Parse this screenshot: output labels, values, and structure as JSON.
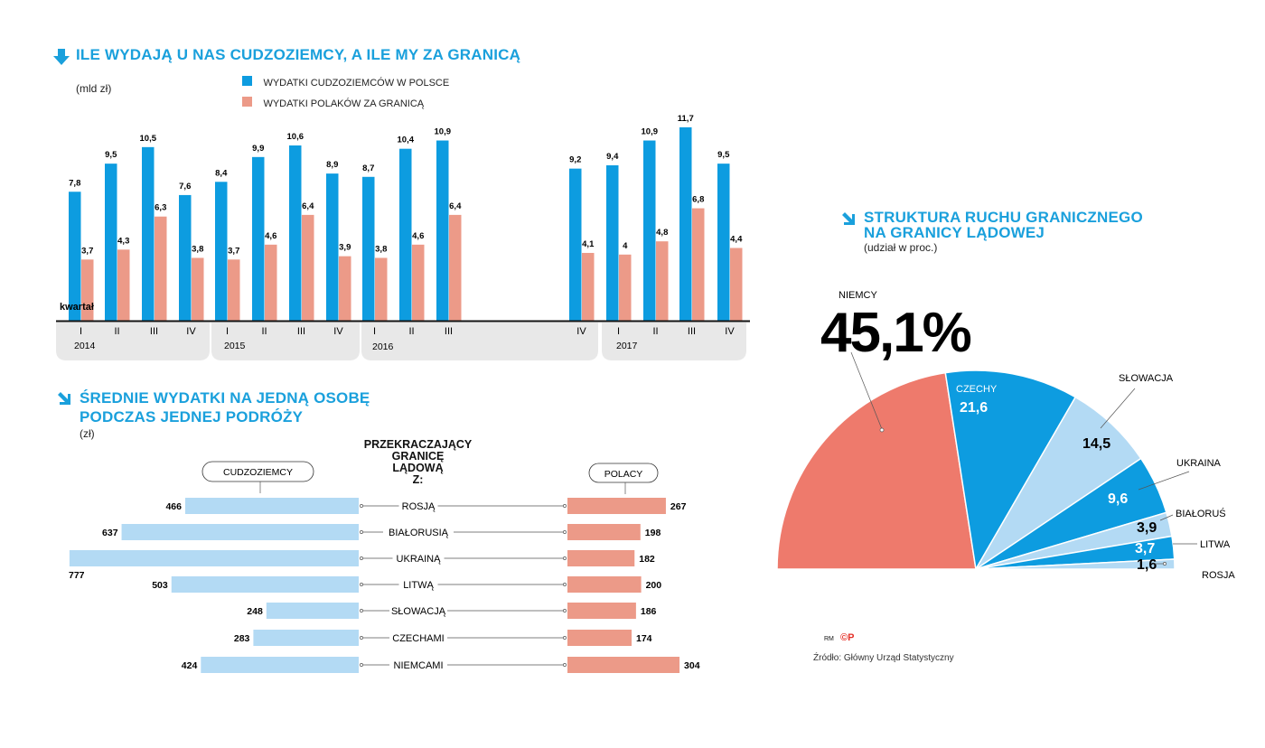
{
  "colors": {
    "blue": "#0d9ce0",
    "salmon": "#ec9a88",
    "lightblue": "#b3daf4",
    "pie_red": "#ee7a6c",
    "title": "#1aa0dc",
    "band": "#e8e8e8"
  },
  "section1": {
    "title": "ILE WYDAJĄ U NAS CUDZOZIEMCY, A ILE MY ZA GRANICĄ",
    "unit": "(mld zł)",
    "legend": [
      "WYDATKI CUDZOZIEMCÓW W POLSCE",
      "WYDATKI POLAKÓW ZA GRANICĄ"
    ],
    "axis_label": "kwartał"
  },
  "section2": {
    "title_line1": "ŚREDNIE WYDATKI NA JEDNĄ OSOBĘ",
    "title_line2": "PODCZAS JEDNEJ PODRÓŻY",
    "unit": "(zł)",
    "center_header": [
      "PRZEKRACZAJĄCY",
      "GRANICĘ",
      "LĄDOWĄ",
      "Z:"
    ],
    "left_label": "CUDZOZIEMCY",
    "right_label": "POLACY"
  },
  "section3": {
    "title_line1": "STRUKTURA RUCHU GRANICZNEGO",
    "title_line2": "NA GRANICY LĄDOWEJ",
    "unit": "(udział w proc.)",
    "big_value": "45,1%"
  },
  "footer": {
    "rm": "RM",
    "cp": "©P",
    "source": "Źródło: Główny Urząd Statystyczny"
  },
  "chart_data": [
    {
      "type": "bar",
      "title": "ILE WYDAJĄ U NAS CUDZOZIEMCY, A ILE MY ZA GRANICĄ",
      "ylabel": "mld zł",
      "xlabel": "kwartał",
      "groups": [
        {
          "year": "2014",
          "quarters": [
            {
              "q": "I",
              "foreign": "7,8",
              "polish": "3,7",
              "fv": 7.8,
              "pv": 3.7
            },
            {
              "q": "II",
              "foreign": "9,5",
              "polish": "4,3",
              "fv": 9.5,
              "pv": 4.3
            },
            {
              "q": "III",
              "foreign": "10,5",
              "polish": "6,3",
              "fv": 10.5,
              "pv": 6.3
            },
            {
              "q": "IV",
              "foreign": "7,6",
              "polish": "3,8",
              "fv": 7.6,
              "pv": 3.8
            }
          ]
        },
        {
          "year": "2015",
          "quarters": [
            {
              "q": "I",
              "foreign": "8,4",
              "polish": "3,7",
              "fv": 8.4,
              "pv": 3.7
            },
            {
              "q": "II",
              "foreign": "9,9",
              "polish": "4,6",
              "fv": 9.9,
              "pv": 4.6
            },
            {
              "q": "III",
              "foreign": "10,6",
              "polish": "6,4",
              "fv": 10.6,
              "pv": 6.4
            },
            {
              "q": "IV",
              "foreign": "8,9",
              "polish": "3,9",
              "fv": 8.9,
              "pv": 3.9
            }
          ]
        },
        {
          "year": "2016",
          "quarters": [
            {
              "q": "I",
              "foreign": "8,7",
              "polish": "3,8",
              "fv": 8.7,
              "pv": 3.8
            },
            {
              "q": "II",
              "foreign": "10,4",
              "polish": "4,6",
              "fv": 10.4,
              "pv": 4.6
            },
            {
              "q": "III",
              "foreign": "10,9",
              "polish": "6,4",
              "fv": 10.9,
              "pv": 6.4
            },
            {
              "q": "IV",
              "foreign": "9,2",
              "polish": "4,1",
              "fv": 9.2,
              "pv": 4.1
            }
          ]
        },
        {
          "year": "2017",
          "quarters": [
            {
              "q": "I",
              "foreign": "9,4",
              "polish": "4",
              "fv": 9.4,
              "pv": 4.0
            },
            {
              "q": "II",
              "foreign": "10,9",
              "polish": "4,8",
              "fv": 10.9,
              "pv": 4.8
            },
            {
              "q": "III",
              "foreign": "11,7",
              "polish": "6,8",
              "fv": 11.7,
              "pv": 6.8
            },
            {
              "q": "IV",
              "foreign": "9,5",
              "polish": "4,4",
              "fv": 9.5,
              "pv": 4.4
            }
          ]
        }
      ],
      "ylim": [
        0,
        12
      ]
    },
    {
      "type": "bar",
      "orientation": "horizontal-butterfly",
      "title": "ŚREDNIE WYDATKI NA JEDNĄ OSOBĘ PODCZAS JEDNEJ PODRÓŻY",
      "unit": "zł",
      "rows": [
        {
          "country": "ROSJĄ",
          "foreigners": 466,
          "poles": 267
        },
        {
          "country": "BIAŁORUSIĄ",
          "foreigners": 637,
          "poles": 198
        },
        {
          "country": "UKRAINĄ",
          "foreigners": 777,
          "poles": 182
        },
        {
          "country": "LITWĄ",
          "foreigners": 503,
          "poles": 200
        },
        {
          "country": "SŁOWACJĄ",
          "foreigners": 248,
          "poles": 186
        },
        {
          "country": "CZECHAMI",
          "foreigners": 283,
          "poles": 174
        },
        {
          "country": "NIEMCAMI",
          "foreigners": 424,
          "poles": 304
        }
      ]
    },
    {
      "type": "pie",
      "subtype": "half-pie",
      "title": "STRUKTURA RUCHU GRANICZNEGO NA GRANICY LĄDOWEJ",
      "unit": "udział w proc.",
      "slices": [
        {
          "name": "NIEMCY",
          "value": 45.1,
          "label": "45,1%",
          "color": "#ee7a6c"
        },
        {
          "name": "CZECHY",
          "value": 21.6,
          "label": "21,6",
          "color": "#0d9ce0"
        },
        {
          "name": "SŁOWACJA",
          "value": 14.5,
          "label": "14,5",
          "color": "#b3daf4"
        },
        {
          "name": "UKRAINA",
          "value": 9.6,
          "label": "9,6",
          "color": "#0d9ce0"
        },
        {
          "name": "BIAŁORUŚ",
          "value": 3.9,
          "label": "3,9",
          "color": "#b3daf4"
        },
        {
          "name": "LITWA",
          "value": 3.7,
          "label": "3,7",
          "color": "#0d9ce0"
        },
        {
          "name": "ROSJA",
          "value": 1.6,
          "label": "1,6",
          "color": "#b3daf4"
        }
      ]
    }
  ]
}
